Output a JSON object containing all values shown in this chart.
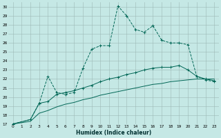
{
  "xlabel": "Humidex (Indice chaleur)",
  "background_color": "#c5e8e5",
  "grid_color": "#9cb8b5",
  "line_color": "#006655",
  "xlim": [
    -0.5,
    23.5
  ],
  "ylim": [
    17,
    30.5
  ],
  "series1_x": [
    0,
    2,
    3,
    4,
    5,
    6,
    7,
    8,
    9,
    10,
    11,
    12,
    13,
    14,
    15,
    16,
    17,
    18,
    19,
    20,
    21,
    22,
    23
  ],
  "series1_y": [
    17,
    17.5,
    19.3,
    22.3,
    20.5,
    20.3,
    20.5,
    23.2,
    25.3,
    25.7,
    25.7,
    30.1,
    29.0,
    27.5,
    27.2,
    27.9,
    26.3,
    26.0,
    26.0,
    25.8,
    22.3,
    21.9,
    21.7
  ],
  "series2_x": [
    0,
    2,
    3,
    4,
    5,
    6,
    7,
    8,
    9,
    10,
    11,
    12,
    13,
    14,
    15,
    16,
    17,
    18,
    19,
    20,
    21,
    22,
    23
  ],
  "series2_y": [
    17,
    17.5,
    19.3,
    19.5,
    20.3,
    20.5,
    20.7,
    21.0,
    21.3,
    21.7,
    22.0,
    22.2,
    22.5,
    22.7,
    23.0,
    23.2,
    23.3,
    23.3,
    23.5,
    23.0,
    22.3,
    22.0,
    21.8
  ],
  "series3_x": [
    0,
    2,
    3,
    4,
    5,
    6,
    7,
    8,
    9,
    10,
    11,
    12,
    13,
    14,
    15,
    16,
    17,
    18,
    19,
    20,
    21,
    22,
    23
  ],
  "series3_y": [
    17,
    17.3,
    18.2,
    18.5,
    18.9,
    19.2,
    19.4,
    19.7,
    19.9,
    20.2,
    20.4,
    20.6,
    20.8,
    21.0,
    21.2,
    21.4,
    21.5,
    21.7,
    21.8,
    21.9,
    22.0,
    22.0,
    22.0
  ]
}
